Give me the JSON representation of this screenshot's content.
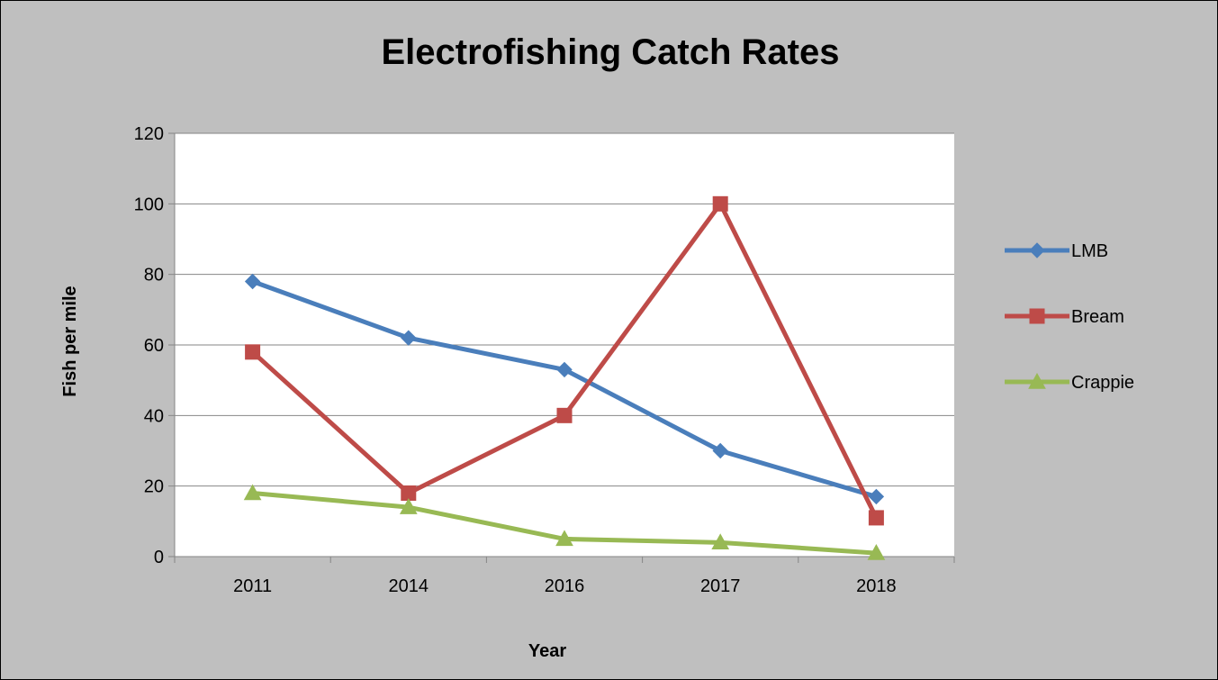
{
  "chart_data": {
    "type": "line",
    "title": "Electrofishing Catch Rates",
    "xlabel": "Year",
    "ylabel": "Fish per mile",
    "categories": [
      "2011",
      "2014",
      "2016",
      "2017",
      "2018"
    ],
    "ylim": [
      0,
      120
    ],
    "yticks": [
      "0",
      "20",
      "40",
      "60",
      "80",
      "100",
      "120"
    ],
    "grid": "horizontal",
    "legend_position": "right",
    "series": [
      {
        "name": "LMB",
        "values": [
          78,
          62,
          53,
          30,
          17
        ],
        "color": "#4a7ebb",
        "marker": "diamond"
      },
      {
        "name": "Bream",
        "values": [
          58,
          18,
          40,
          100,
          11
        ],
        "color": "#be4b48",
        "marker": "square"
      },
      {
        "name": "Crappie",
        "values": [
          18,
          14,
          5,
          4,
          1
        ],
        "color": "#98b954",
        "marker": "triangle"
      }
    ]
  }
}
